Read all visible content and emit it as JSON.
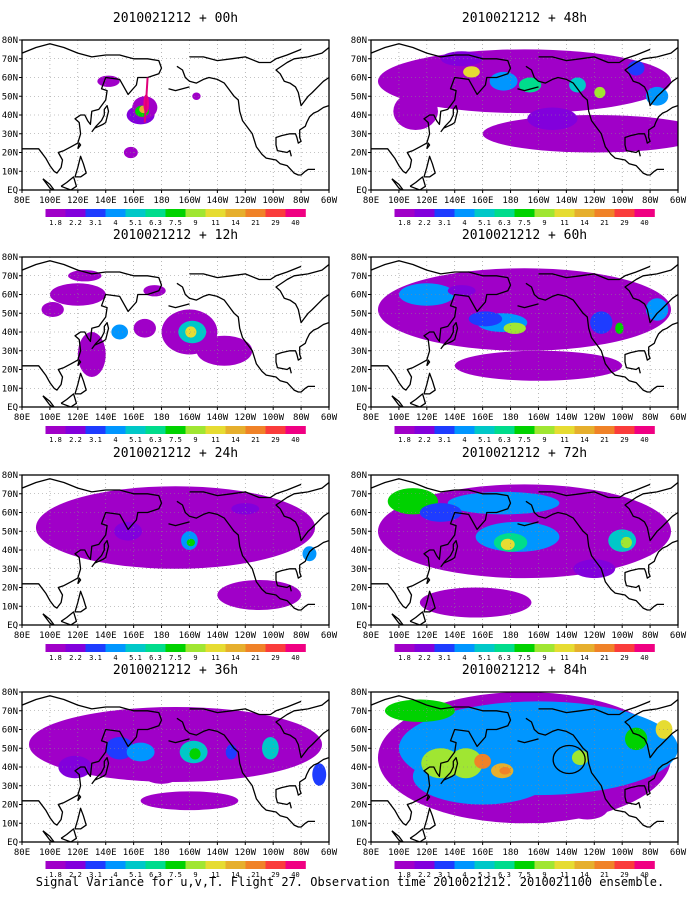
{
  "caption": "Signal Variance for u,v,T. Flight 27. Observation time 2010021212. 2010021100 ensemble.",
  "axes": {
    "lon_ticks": [
      "80E",
      "100E",
      "120E",
      "140E",
      "160E",
      "180",
      "160W",
      "140W",
      "120W",
      "100W",
      "80W",
      "60W"
    ],
    "lat_ticks": [
      "80N",
      "70N",
      "60N",
      "50N",
      "40N",
      "30N",
      "20N",
      "10N",
      "EQ"
    ]
  },
  "colorbar": {
    "labels": [
      "1.8",
      "2.2",
      "3.1",
      "4",
      "5.1",
      "6.3",
      "7.5",
      "9",
      "11",
      "14",
      "21",
      "29",
      "40"
    ],
    "colors": [
      "#a000c8",
      "#8200dc",
      "#1e3cff",
      "#0096ff",
      "#00c8c8",
      "#00dc8c",
      "#00d200",
      "#a0e632",
      "#e6dc32",
      "#e6af2d",
      "#f08228",
      "#fa3c3c",
      "#f00082"
    ]
  },
  "panels": [
    {
      "title": "2010021212 + 00h",
      "lead_hours": 0
    },
    {
      "title": "2010021212 + 48h",
      "lead_hours": 48
    },
    {
      "title": "2010021212 + 12h",
      "lead_hours": 12
    },
    {
      "title": "2010021212 + 60h",
      "lead_hours": 60
    },
    {
      "title": "2010021212 + 24h",
      "lead_hours": 24
    },
    {
      "title": "2010021212 + 72h",
      "lead_hours": 72
    },
    {
      "title": "2010021212 + 36h",
      "lead_hours": 36
    },
    {
      "title": "2010021212 + 84h",
      "lead_hours": 84
    }
  ]
}
